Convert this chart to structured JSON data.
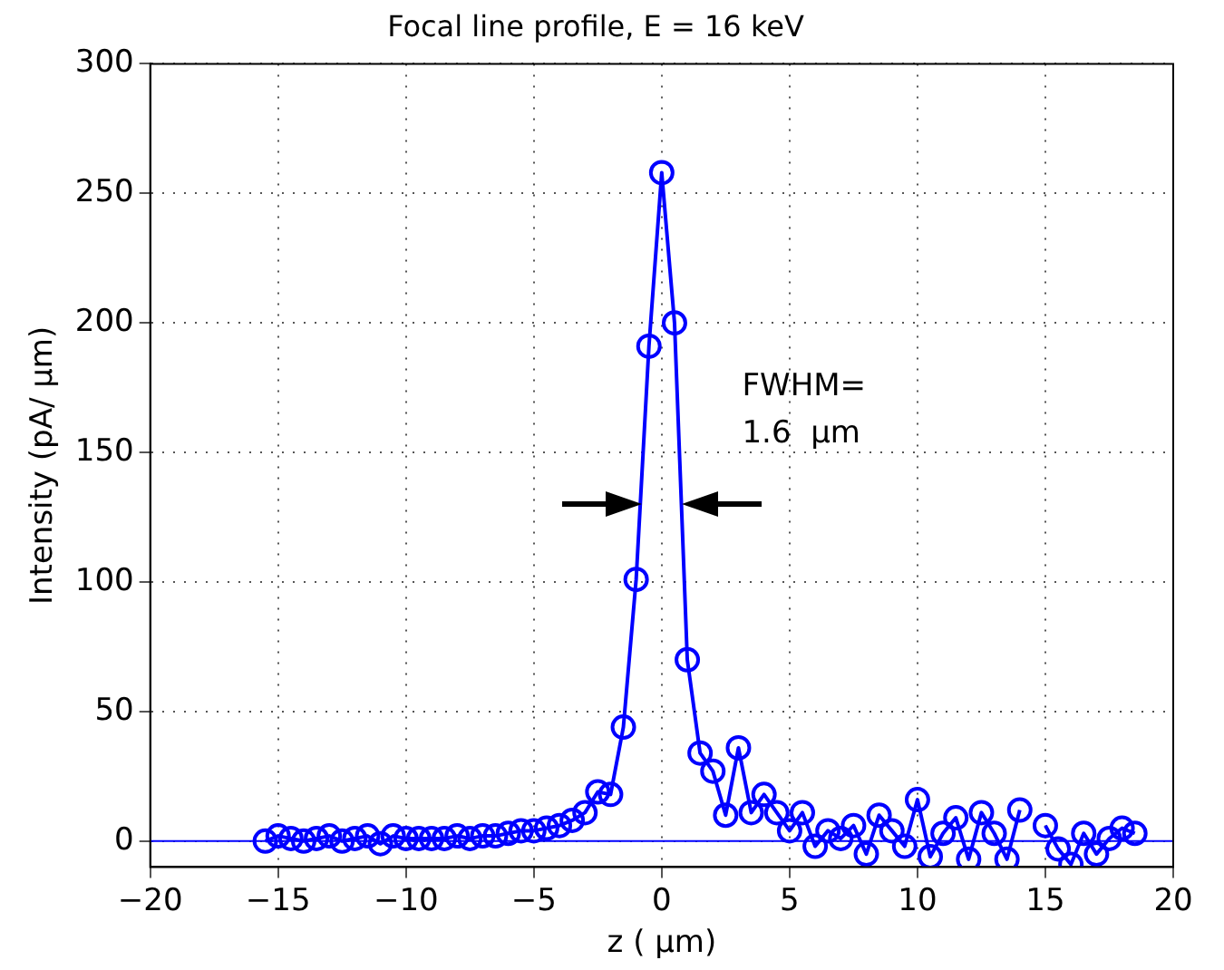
{
  "chart_data": {
    "type": "line",
    "title": "Focal line profile, E = 16 keV",
    "xlabel": "z ( μm)",
    "ylabel": "Intensity (pA/ μm)",
    "annotations": [
      "FWHM=\n1.6  μm"
    ],
    "x": [
      -15.5,
      -15,
      -14.5,
      -14,
      -13.5,
      -13,
      -12.5,
      -12,
      -11.5,
      -11,
      -10.5,
      -10,
      -9.5,
      -9,
      -8.5,
      -8,
      -7.5,
      -7,
      -6.5,
      -6,
      -5.5,
      -5,
      -4.5,
      -4,
      -3.5,
      -3,
      -2.5,
      -2,
      -1.5,
      -1,
      -0.5,
      0,
      0.5,
      1,
      1.5,
      2,
      2.5,
      3,
      3.5,
      4,
      4.5,
      5,
      5.5,
      6,
      6.5,
      7,
      7.5,
      8,
      8.5,
      9,
      9.5,
      10,
      10.5,
      11,
      11.5,
      12,
      12.5,
      13,
      13.5,
      14,
      14.5,
      15,
      15.5,
      16,
      16.5,
      17,
      17.5,
      18,
      18.5
    ],
    "series": [
      {
        "color": "#0000ff",
        "values": [
          0,
          2,
          1,
          0,
          1,
          2,
          0,
          1,
          2,
          -1,
          2,
          1,
          1,
          1,
          1,
          2,
          1,
          2,
          2,
          3,
          4,
          4,
          5,
          6,
          8,
          11,
          19,
          18,
          44,
          101,
          191,
          258,
          200,
          70,
          34,
          27,
          10,
          36,
          11,
          18,
          11,
          4,
          11,
          -2,
          4,
          1,
          6,
          -5,
          10,
          4,
          -2,
          16,
          -6,
          3,
          9,
          -7,
          11,
          3,
          -7,
          12,
          null,
          6,
          -3,
          -9,
          3,
          -5,
          1,
          5,
          3
        ]
      }
    ],
    "xlim": [
      -20,
      20
    ],
    "ylim": [
      -10,
      300
    ],
    "xticks": [
      -20,
      -15,
      -10,
      -5,
      0,
      5,
      10,
      15,
      20
    ],
    "yticks": [
      0,
      50,
      100,
      150,
      200,
      250,
      300
    ],
    "ref_lines": [
      {
        "axis": "y",
        "value": 0,
        "color": "#0000ff",
        "line_style": "solid"
      }
    ],
    "grid": true,
    "marker": "circle",
    "line_style": "solid",
    "legend": false
  }
}
